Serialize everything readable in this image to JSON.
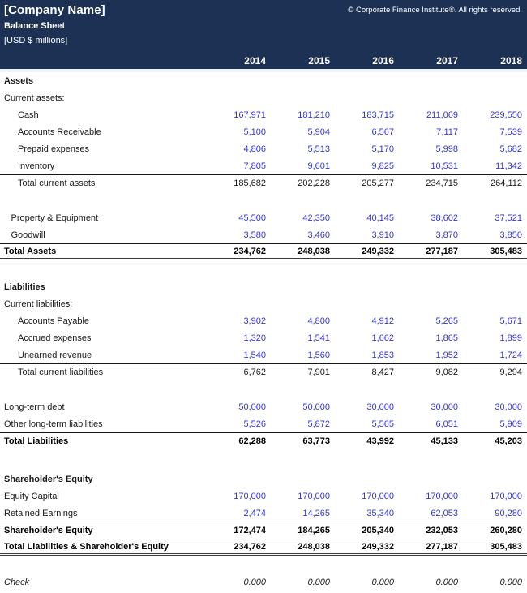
{
  "header": {
    "company_name": "[Company Name]",
    "copyright": "© Corporate Finance Institute®. All rights reserved.",
    "title": "Balance Sheet",
    "units": "[USD $ millions]"
  },
  "columns": [
    "2014",
    "2015",
    "2016",
    "2017",
    "2018"
  ],
  "accents": {
    "header_background": "#1c3154",
    "header_text": "#ffffff",
    "input_value_blue": "#3535cf",
    "total_text": "#000000"
  },
  "rows": [
    {
      "type": "heading",
      "indent": 0,
      "label": "Assets"
    },
    {
      "type": "plain",
      "indent": 0,
      "label": "Current assets:"
    },
    {
      "type": "input",
      "indent": 2,
      "label": "Cash",
      "values": [
        "167,971",
        "181,210",
        "183,715",
        "211,069",
        "239,550"
      ]
    },
    {
      "type": "input",
      "indent": 2,
      "label": "Accounts Receivable",
      "values": [
        "5,100",
        "5,904",
        "6,567",
        "7,117",
        "7,539"
      ]
    },
    {
      "type": "input",
      "indent": 2,
      "label": "Prepaid expenses",
      "values": [
        "4,806",
        "5,513",
        "5,170",
        "5,998",
        "5,682"
      ]
    },
    {
      "type": "input",
      "indent": 2,
      "label": "Inventory",
      "values": [
        "7,805",
        "9,601",
        "9,825",
        "10,531",
        "11,342"
      ]
    },
    {
      "type": "subtotal",
      "indent": 2,
      "borders": [
        "bt"
      ],
      "label": "Total current assets",
      "values": [
        "185,682",
        "202,228",
        "205,277",
        "234,715",
        "264,112"
      ]
    },
    {
      "type": "blank"
    },
    {
      "type": "input",
      "indent": 1,
      "label": "Property & Equipment",
      "values": [
        "45,500",
        "42,350",
        "40,145",
        "38,602",
        "37,521"
      ]
    },
    {
      "type": "input",
      "indent": 1,
      "label": "Goodwill",
      "values": [
        "3,580",
        "3,460",
        "3,910",
        "3,870",
        "3,850"
      ]
    },
    {
      "type": "total",
      "indent": 0,
      "borders": [
        "bt",
        "bdb"
      ],
      "label": "Total Assets",
      "values": [
        "234,762",
        "248,038",
        "249,332",
        "277,187",
        "305,483"
      ]
    },
    {
      "type": "blank"
    },
    {
      "type": "heading",
      "indent": 0,
      "label": "Liabilities"
    },
    {
      "type": "plain",
      "indent": 0,
      "label": "Current liabilities:"
    },
    {
      "type": "input",
      "indent": 2,
      "label": "Accounts Payable",
      "values": [
        "3,902",
        "4,800",
        "4,912",
        "5,265",
        "5,671"
      ]
    },
    {
      "type": "input",
      "indent": 2,
      "label": "Accrued expenses",
      "values": [
        "1,320",
        "1,541",
        "1,662",
        "1,865",
        "1,899"
      ]
    },
    {
      "type": "input",
      "indent": 2,
      "label": "Unearned revenue",
      "values": [
        "1,540",
        "1,560",
        "1,853",
        "1,952",
        "1,724"
      ]
    },
    {
      "type": "subtotal",
      "indent": 2,
      "borders": [
        "bt"
      ],
      "label": "Total current liabilities",
      "values": [
        "6,762",
        "7,901",
        "8,427",
        "9,082",
        "9,294"
      ]
    },
    {
      "type": "blank"
    },
    {
      "type": "input",
      "indent": 0,
      "label": "Long-term debt",
      "values": [
        "50,000",
        "50,000",
        "30,000",
        "30,000",
        "30,000"
      ]
    },
    {
      "type": "input",
      "indent": 0,
      "label": "Other long-term liabilities",
      "values": [
        "5,526",
        "5,872",
        "5,565",
        "6,051",
        "5,909"
      ]
    },
    {
      "type": "total",
      "indent": 0,
      "borders": [
        "bt"
      ],
      "label": "Total Liabilities",
      "values": [
        "62,288",
        "63,773",
        "43,992",
        "45,133",
        "45,203"
      ]
    },
    {
      "type": "blank",
      "size": "tall"
    },
    {
      "type": "heading",
      "indent": 0,
      "label": "Shareholder's Equity"
    },
    {
      "type": "input",
      "indent": 0,
      "label": "Equity Capital",
      "values": [
        "170,000",
        "170,000",
        "170,000",
        "170,000",
        "170,000"
      ]
    },
    {
      "type": "input",
      "indent": 0,
      "label": "Retained Earnings",
      "values": [
        "2,474",
        "14,265",
        "35,340",
        "62,053",
        "90,280"
      ]
    },
    {
      "type": "total",
      "indent": 0,
      "borders": [
        "bt"
      ],
      "label": "Shareholder's Equity",
      "values": [
        "172,474",
        "184,265",
        "205,340",
        "232,053",
        "260,280"
      ]
    },
    {
      "type": "total",
      "indent": 0,
      "borders": [
        "bt",
        "bdb"
      ],
      "label": "Total Liabilities & Shareholder's Equity",
      "values": [
        "234,762",
        "248,038",
        "249,332",
        "277,187",
        "305,483"
      ]
    },
    {
      "type": "blank"
    },
    {
      "type": "check",
      "indent": 0,
      "label": "Check",
      "values": [
        "0.000",
        "0.000",
        "0.000",
        "0.000",
        "0.000"
      ]
    }
  ]
}
